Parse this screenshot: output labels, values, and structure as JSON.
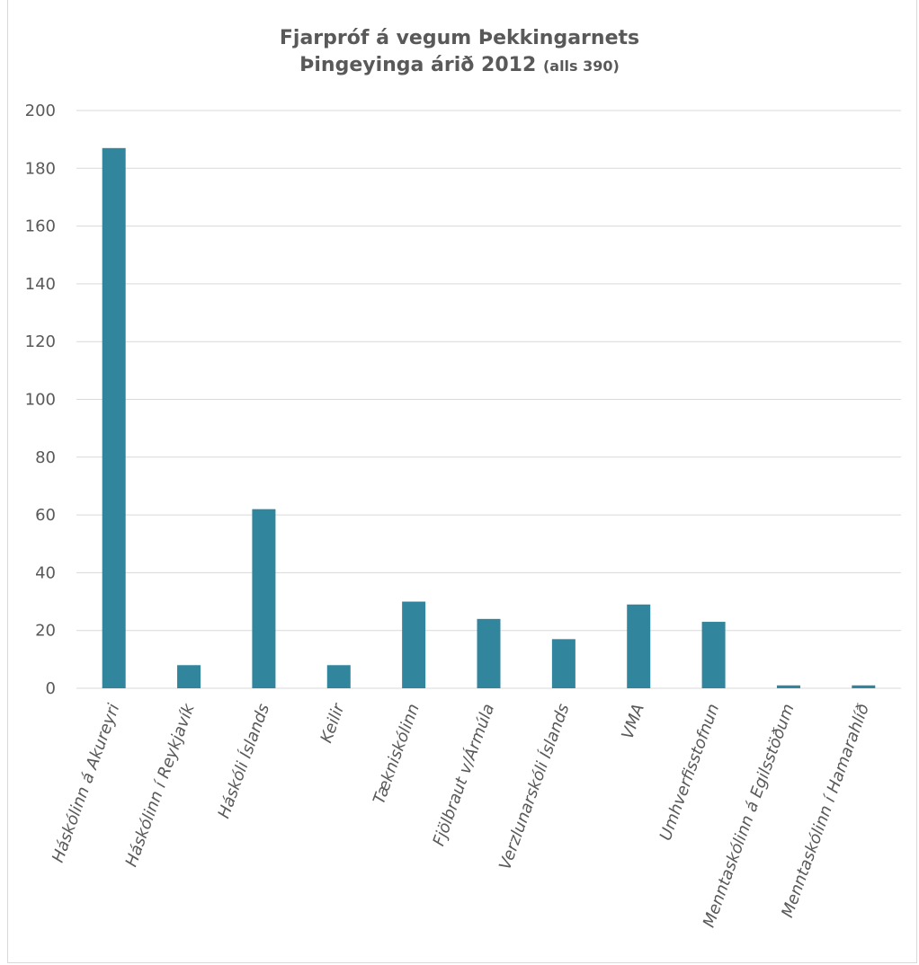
{
  "chart_data": {
    "type": "bar",
    "title_line1": "Fjarpróf á vegum Þekkingarnets",
    "title_line2": "Þingeyinga árið 2012",
    "title_note": "(alls 390)",
    "xlabel": "",
    "ylabel": "",
    "ylim": [
      0,
      200
    ],
    "yticks": [
      0,
      20,
      40,
      60,
      80,
      100,
      120,
      140,
      160,
      180,
      200
    ],
    "grid": true,
    "legend": "none",
    "categories": [
      "Háskólinn á Akureyri",
      "Háskólinn í Reykjavík",
      "Háskóli Íslands",
      "Keilir",
      "Tækniskólinn",
      "Fjölbraut v/Ármúla",
      "Verzlunarskóli Íslands",
      "VMA",
      "Umhverfisstofnun",
      "Menntaskólinn á Egilsstöðum",
      "Menntaskólinn í Hamarahlíð"
    ],
    "values": [
      187,
      8,
      62,
      8,
      30,
      24,
      17,
      29,
      23,
      1,
      1
    ],
    "colors": {
      "bar": "#31859c",
      "grid": "#d9d9d9",
      "text": "#595959"
    }
  }
}
